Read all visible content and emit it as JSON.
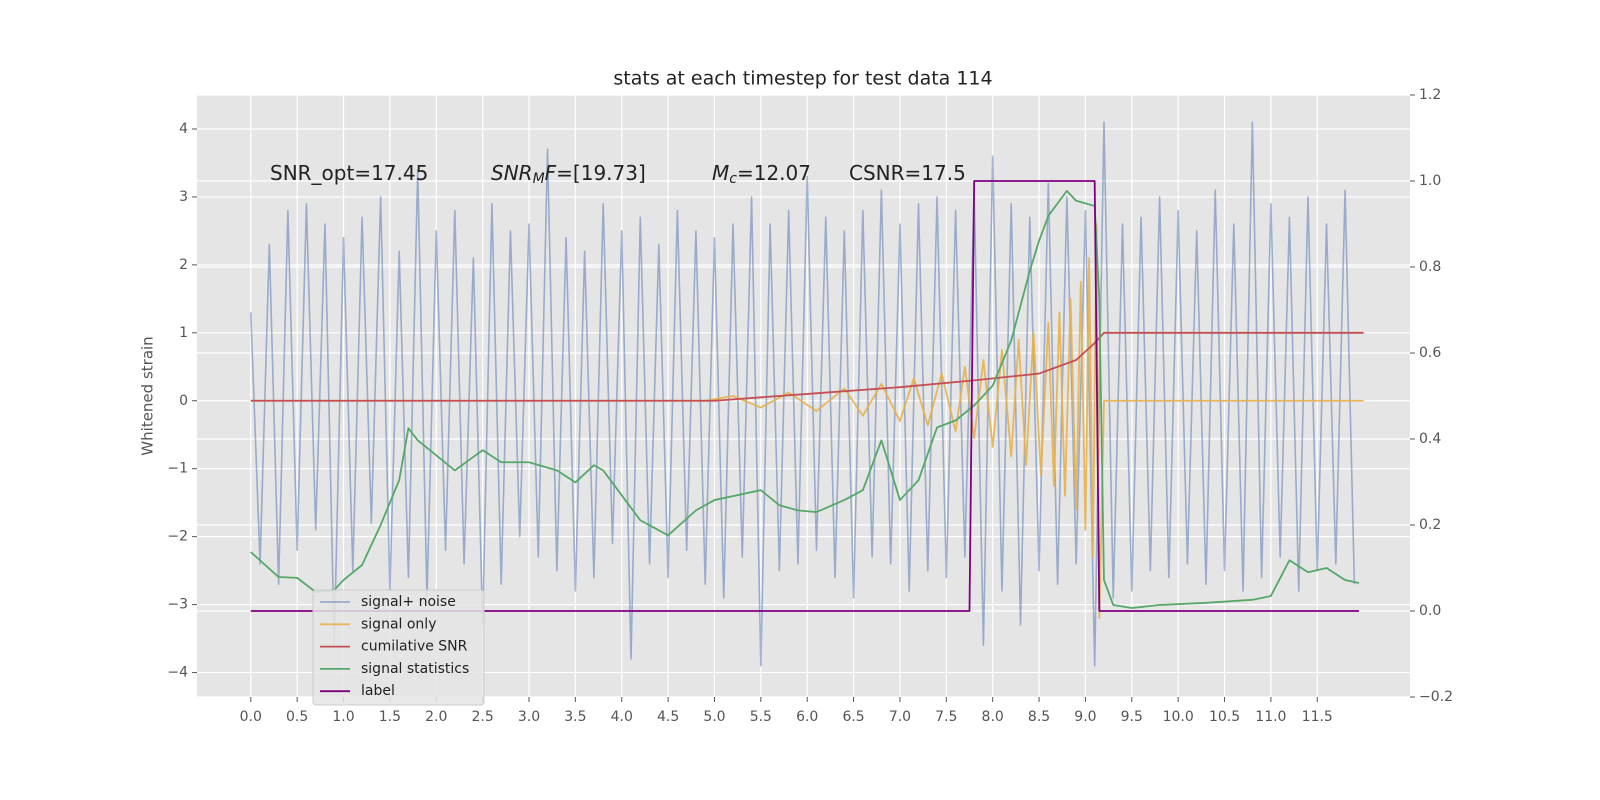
{
  "chart_data": {
    "type": "line",
    "title": "stats at each timestep for test data 114",
    "ylabel": "Whitened strain",
    "xlim": [
      -0.58,
      12.5
    ],
    "ylim": [
      -4.36,
      4.5
    ],
    "y2lim": [
      -0.2,
      1.2
    ],
    "xticks": [
      {
        "value": 0,
        "label": "0.0"
      },
      0.5,
      {
        "value": 1,
        "label": "1.0"
      },
      1.5,
      {
        "value": 2,
        "label": "2.0"
      },
      2.5,
      {
        "value": 3,
        "label": "3.0"
      },
      3.5,
      {
        "value": 4,
        "label": "4.0"
      },
      4.5,
      {
        "value": 5,
        "label": "5.0"
      },
      5.5,
      {
        "value": 6,
        "label": "6.0"
      },
      6.5,
      {
        "value": 7,
        "label": "7.0"
      },
      7.5,
      {
        "value": 8,
        "label": "8.0"
      },
      8.5,
      {
        "value": 9,
        "label": "9.0"
      },
      9.5,
      {
        "value": 10,
        "label": "10.0"
      },
      10.5,
      {
        "value": 11,
        "label": "11.0"
      },
      11.5
    ],
    "yticks": [
      {
        "value": -4,
        "label": "−4"
      },
      {
        "value": -3,
        "label": "−3"
      },
      {
        "value": -2,
        "label": "−2"
      },
      {
        "value": -1,
        "label": "−1"
      },
      0,
      1,
      2,
      3,
      4
    ],
    "y2ticks": [
      {
        "value": -0.2,
        "label": "−0.2"
      },
      {
        "value": 0,
        "label": "0.0"
      },
      0.2,
      0.4,
      0.6,
      0.8,
      {
        "value": 1,
        "label": "1.0"
      },
      1.2
    ],
    "grid": true,
    "legend": "lower left",
    "annotations": [
      {
        "parts": [
          {
            "text": "SNR_opt=17.45",
            "style": "normal"
          }
        ]
      },
      {
        "parts": [
          {
            "text": "SNR",
            "style": "italic"
          },
          {
            "text": "M",
            "style": "sub"
          },
          {
            "text": "F",
            "style": "italic"
          },
          {
            "text": "=[19.73]",
            "style": "normal"
          }
        ]
      },
      {
        "parts": [
          {
            "text": "M",
            "style": "italic"
          },
          {
            "text": "c",
            "style": "sub"
          },
          {
            "text": "=12.07",
            "style": "normal"
          }
        ]
      },
      {
        "parts": [
          {
            "text": "CSNR=17.5",
            "style": "normal"
          }
        ]
      }
    ],
    "series": [
      {
        "name": "signal+ noise",
        "color": "#4C72B0",
        "opacity": 0.5,
        "x": [
          0,
          0.1,
          0.2,
          0.3,
          0.4,
          0.5,
          0.6,
          0.7,
          0.8,
          0.9,
          1,
          1.1,
          1.2,
          1.3,
          1.4,
          1.5,
          1.6,
          1.7,
          1.8,
          1.9,
          2,
          2.1,
          2.2,
          2.3,
          2.4,
          2.5,
          2.6,
          2.7,
          2.8,
          2.9,
          3,
          3.1,
          3.2,
          3.3,
          3.4,
          3.5,
          3.6,
          3.7,
          3.8,
          3.9,
          4,
          4.1,
          4.2,
          4.3,
          4.4,
          4.5,
          4.6,
          4.7,
          4.8,
          4.9,
          5,
          5.1,
          5.2,
          5.3,
          5.4,
          5.5,
          5.6,
          5.7,
          5.8,
          5.9,
          6,
          6.1,
          6.2,
          6.3,
          6.4,
          6.5,
          6.6,
          6.7,
          6.8,
          6.9,
          7,
          7.1,
          7.2,
          7.3,
          7.4,
          7.5,
          7.6,
          7.7,
          7.8,
          7.9,
          8,
          8.1,
          8.2,
          8.3,
          8.4,
          8.5,
          8.6,
          8.7,
          8.8,
          8.9,
          9,
          9.1,
          9.2,
          9.3,
          9.4,
          9.5,
          9.6,
          9.7,
          9.8,
          9.9,
          10,
          10.1,
          10.2,
          10.3,
          10.4,
          10.5,
          10.6,
          10.7,
          10.8,
          10.9,
          11,
          11.1,
          11.2,
          11.3,
          11.4,
          11.5,
          11.6,
          11.7,
          11.8,
          11.9
        ],
        "values": [
          1.3,
          -2.4,
          2.3,
          -2.7,
          2.8,
          -2.2,
          2.9,
          -1.9,
          2.6,
          -3.6,
          2.4,
          -2.5,
          2.7,
          -1.8,
          3.0,
          -2.8,
          2.2,
          -2.6,
          3.4,
          -2.9,
          2.5,
          -2.2,
          2.8,
          -2.4,
          2.1,
          -3.3,
          2.9,
          -2.7,
          2.5,
          -2.0,
          2.6,
          -2.3,
          3.7,
          -2.5,
          2.4,
          -2.8,
          2.2,
          -2.6,
          2.9,
          -2.1,
          2.5,
          -3.8,
          2.7,
          -2.4,
          2.3,
          -2.6,
          2.8,
          -2.2,
          2.5,
          -2.7,
          2.4,
          -2.9,
          2.6,
          -2.3,
          3.0,
          -3.9,
          2.6,
          -2.5,
          2.8,
          -2.4,
          3.3,
          -2.2,
          2.7,
          -2.6,
          2.5,
          -2.9,
          2.8,
          -2.3,
          3.1,
          -2.4,
          2.6,
          -2.8,
          2.9,
          -2.5,
          3.0,
          -2.6,
          2.8,
          -2.3,
          3.1,
          -3.6,
          3.6,
          -2.8,
          2.9,
          -3.3,
          2.7,
          -2.5,
          3.2,
          -2.7,
          3.0,
          -2.4,
          2.8,
          -3.9,
          4.1,
          -2.9,
          2.6,
          -2.8,
          2.7,
          -2.5,
          3.0,
          -2.6,
          2.8,
          -2.4,
          2.5,
          -2.7,
          3.1,
          -2.5,
          2.6,
          -2.8,
          4.1,
          -2.6,
          2.9,
          -2.3,
          2.7,
          -2.8,
          3.0,
          -2.5,
          2.6,
          -2.4,
          3.1,
          -2.7
        ]
      },
      {
        "name": "signal only",
        "color": "#E8B04A",
        "opacity": 0.9,
        "x": [
          0,
          4.9,
          5.2,
          5.5,
          5.8,
          6.1,
          6.4,
          6.6,
          6.8,
          7.0,
          7.15,
          7.3,
          7.45,
          7.6,
          7.7,
          7.8,
          7.9,
          8.0,
          8.1,
          8.2,
          8.28,
          8.36,
          8.44,
          8.52,
          8.6,
          8.66,
          8.72,
          8.78,
          8.84,
          8.9,
          8.95,
          9.0,
          9.04,
          9.08,
          9.12,
          9.15,
          9.2,
          12
        ],
        "values": [
          0,
          0,
          0.07,
          -0.1,
          0.12,
          -0.15,
          0.18,
          -0.22,
          0.25,
          -0.3,
          0.33,
          -0.36,
          0.4,
          -0.45,
          0.5,
          -0.55,
          0.6,
          -0.68,
          0.75,
          -0.82,
          0.9,
          -0.95,
          1.0,
          -1.1,
          1.15,
          -1.25,
          1.3,
          -1.4,
          1.5,
          -1.6,
          1.75,
          -1.9,
          2.1,
          -2.3,
          2.6,
          -3.2,
          0,
          0
        ]
      },
      {
        "name": "cumilative SNR",
        "color": "#C44E52",
        "opacity": 1,
        "x": [
          0,
          5,
          6,
          7,
          7.8,
          8.5,
          8.9,
          9.1,
          9.2,
          12
        ],
        "values": [
          0,
          0,
          0.1,
          0.2,
          0.3,
          0.4,
          0.6,
          0.85,
          1.0,
          1.0
        ]
      },
      {
        "name": "signal statistics",
        "color": "#55A868",
        "opacity": 1,
        "axis": "y2",
        "x": [
          0,
          0.3,
          0.5,
          0.7,
          0.9,
          1.0,
          1.2,
          1.4,
          1.6,
          1.7,
          1.8,
          2.0,
          2.2,
          2.5,
          2.7,
          3.0,
          3.3,
          3.5,
          3.7,
          3.8,
          4.0,
          4.2,
          4.5,
          4.8,
          5.0,
          5.5,
          5.7,
          5.9,
          6.1,
          6.4,
          6.6,
          6.8,
          7.0,
          7.2,
          7.4,
          7.6,
          7.8,
          8.0,
          8.2,
          8.4,
          8.5,
          8.6,
          8.8,
          8.9,
          9.1,
          9.15,
          9.2,
          9.3,
          9.5,
          9.8,
          10.3,
          10.8,
          11.0,
          11.2,
          11.4,
          11.6,
          11.8,
          11.95
        ],
        "values": [
          0.137,
          0.079,
          0.077,
          0.044,
          0.049,
          0.072,
          0.107,
          0.2,
          0.304,
          0.425,
          0.397,
          0.362,
          0.327,
          0.374,
          0.346,
          0.346,
          0.327,
          0.299,
          0.339,
          0.327,
          0.269,
          0.211,
          0.176,
          0.234,
          0.258,
          0.281,
          0.246,
          0.234,
          0.23,
          0.258,
          0.281,
          0.397,
          0.258,
          0.304,
          0.427,
          0.443,
          0.478,
          0.524,
          0.629,
          0.791,
          0.861,
          0.919,
          0.977,
          0.954,
          0.942,
          0.722,
          0.072,
          0.014,
          0.007,
          0.014,
          0.019,
          0.026,
          0.035,
          0.118,
          0.09,
          0.1,
          0.072,
          0.065
        ]
      },
      {
        "name": "label",
        "color": "#800080",
        "opacity": 1,
        "axis": "y2",
        "x": [
          0,
          7.75,
          7.8,
          9.1,
          9.15,
          11.95
        ],
        "values": [
          0,
          0,
          1,
          1,
          0,
          0
        ]
      }
    ]
  }
}
